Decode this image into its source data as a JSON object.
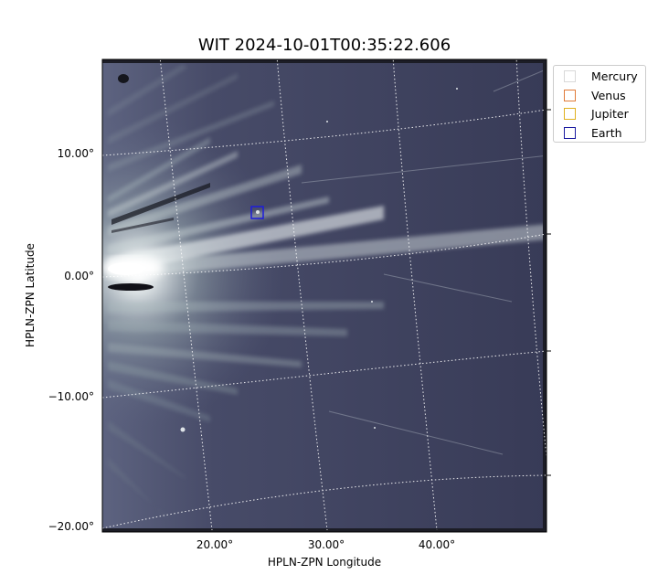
{
  "title": "WIT 2024-10-01T00:35:22.606",
  "x_axis_label": "HPLN-ZPN Longitude",
  "y_axis_label": "HPLN-ZPN Latitude",
  "x_ticks": [
    "20.00°",
    "30.00°",
    "40.00°"
  ],
  "y_ticks": [
    "10.00°",
    "0.00°",
    "−10.00°",
    "−20.00°"
  ],
  "legend": [
    {
      "label": "Mercury",
      "color": "#d9d9d9"
    },
    {
      "label": "Venus",
      "color": "#e07b39"
    },
    {
      "label": "Jupiter",
      "color": "#e0b020"
    },
    {
      "label": "Earth",
      "color": "#1a1aa0"
    }
  ],
  "colors": {
    "image_background": "#3c3f5c",
    "streamer_highlight": "#f5f8f8",
    "grid_lines": "#ffffff",
    "earth_marker": "#1d1ddc"
  }
}
